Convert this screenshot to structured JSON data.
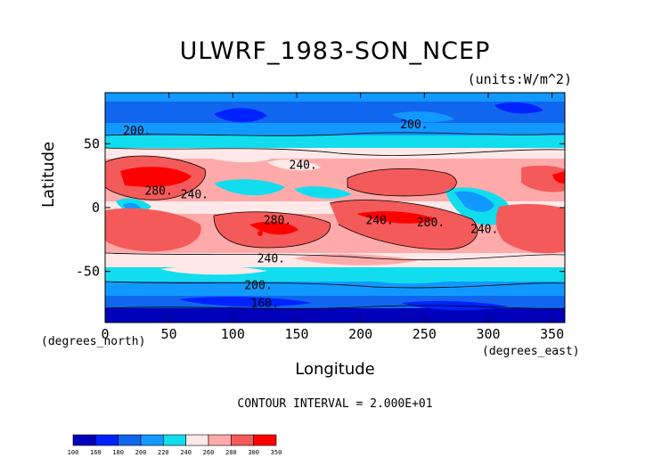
{
  "chart_data": {
    "type": "heatmap",
    "title": "ULWRF_1983-SON_NCEP",
    "units_note": "(units:W/m^2)",
    "xlabel": "Longitude",
    "ylabel": "Latitude",
    "x_unit_note": "(degrees_east)",
    "y_unit_note": "(degrees_north)",
    "xlim": [
      0,
      360
    ],
    "ylim": [
      -90,
      90
    ],
    "x_ticks": [
      "0",
      "50",
      "100",
      "150",
      "200",
      "250",
      "300",
      "350"
    ],
    "y_ticks": [
      "50",
      "0",
      "-50"
    ],
    "contour_interval_text": "CONTOUR INTERVAL = 2.000E+01",
    "contour_labels": [
      {
        "text": "200.",
        "lon": 25,
        "lat": 60
      },
      {
        "text": "200.",
        "lon": 242,
        "lat": 65
      },
      {
        "text": "240.",
        "lon": 155,
        "lat": 33
      },
      {
        "text": "280.",
        "lon": 42,
        "lat": 13
      },
      {
        "text": "240.",
        "lon": 70,
        "lat": 10
      },
      {
        "text": "280.",
        "lon": 135,
        "lat": -10
      },
      {
        "text": "240.",
        "lon": 215,
        "lat": -10
      },
      {
        "text": "280.",
        "lon": 255,
        "lat": -12
      },
      {
        "text": "240.",
        "lon": 297,
        "lat": -17
      },
      {
        "text": "240.",
        "lon": 130,
        "lat": -40
      },
      {
        "text": "200.",
        "lon": 120,
        "lat": -61
      },
      {
        "text": "160.",
        "lon": 125,
        "lat": -75
      }
    ],
    "colorbar": {
      "labels": [
        "100",
        "160",
        "180",
        "200",
        "220",
        "240",
        "260",
        "280",
        "300",
        "350"
      ],
      "colors": [
        "#0000bb",
        "#0022ff",
        "#1166ee",
        "#1199ff",
        "#11ddee",
        "#ffe8e8",
        "#ffaaaa",
        "#f55a5a",
        "#ff0000"
      ]
    }
  }
}
